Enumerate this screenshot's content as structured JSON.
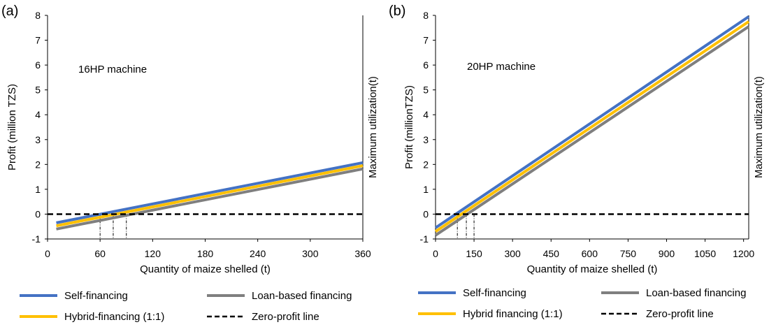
{
  "chart_data": [
    {
      "type": "line",
      "panel_label": "(a)",
      "annotation": "16HP machine",
      "xlabel": "Quantity of maize shelled (t)",
      "ylabel": "Profit (million TZS)",
      "right_label": "Maximum utilization(t)",
      "xlim": [
        0,
        360
      ],
      "ylim": [
        -1,
        8
      ],
      "x_ticks": [
        0,
        60,
        120,
        180,
        240,
        300,
        360
      ],
      "y_ticks": [
        -1,
        0,
        1,
        2,
        3,
        4,
        5,
        6,
        7,
        8
      ],
      "grid": false,
      "series": [
        {
          "name": "Self-financing",
          "color": "#4472C4",
          "x": [
            10,
            360
          ],
          "y": [
            -0.35,
            2.07
          ]
        },
        {
          "name": "Hybrid-financing (1:1)",
          "color": "#FFC000",
          "x": [
            10,
            360
          ],
          "y": [
            -0.47,
            1.95
          ]
        },
        {
          "name": "Loan-based financing",
          "color": "#7F7F7F",
          "x": [
            10,
            360
          ],
          "y": [
            -0.6,
            1.82
          ]
        },
        {
          "name": "Zero-profit line",
          "color": "#000000",
          "dashed": true,
          "x": [
            0,
            360
          ],
          "y": [
            0,
            0
          ]
        }
      ],
      "breakeven_x": [
        60,
        75,
        90
      ]
    },
    {
      "type": "line",
      "panel_label": "(b)",
      "annotation": "20HP machine",
      "xlabel": "Quantity of maize shelled (t)",
      "ylabel": "Profit (millionTZS)",
      "right_label": "Maximum utilization(t)",
      "xlim": [
        0,
        1220
      ],
      "ylim": [
        -1,
        8
      ],
      "x_ticks": [
        0,
        150,
        300,
        450,
        600,
        750,
        900,
        1050,
        1200
      ],
      "y_ticks": [
        -1,
        0,
        1,
        2,
        3,
        4,
        5,
        6,
        7,
        8
      ],
      "grid": false,
      "series": [
        {
          "name": "Self-financing",
          "color": "#4472C4",
          "x": [
            0,
            1220
          ],
          "y": [
            -0.55,
            7.95
          ]
        },
        {
          "name": "Hybrid financing (1:1)",
          "color": "#FFC000",
          "x": [
            0,
            1220
          ],
          "y": [
            -0.7,
            7.75
          ]
        },
        {
          "name": "Loan-based financing",
          "color": "#7F7F7F",
          "x": [
            0,
            1220
          ],
          "y": [
            -0.85,
            7.55
          ]
        },
        {
          "name": "Zero-profit line",
          "color": "#000000",
          "dashed": true,
          "x": [
            0,
            1220
          ],
          "y": [
            0,
            0
          ]
        }
      ],
      "breakeven_x": [
        85,
        120,
        150
      ]
    }
  ],
  "legends": [
    {
      "items": [
        {
          "name": "Self-financing",
          "color": "#4472C4",
          "dashed": false
        },
        {
          "name": "Loan-based financing",
          "color": "#7F7F7F",
          "dashed": false
        },
        {
          "name": "Hybrid-financing (1:1)",
          "color": "#FFC000",
          "dashed": false
        },
        {
          "name": "Zero-profit line",
          "color": "#000000",
          "dashed": true
        }
      ]
    },
    {
      "items": [
        {
          "name": "Self-financing",
          "color": "#4472C4",
          "dashed": false
        },
        {
          "name": "Loan-based financing",
          "color": "#7F7F7F",
          "dashed": false
        },
        {
          "name": "Hybrid financing (1:1)",
          "color": "#FFC000",
          "dashed": false
        },
        {
          "name": "Zero-profit line",
          "color": "#000000",
          "dashed": true
        }
      ]
    }
  ]
}
